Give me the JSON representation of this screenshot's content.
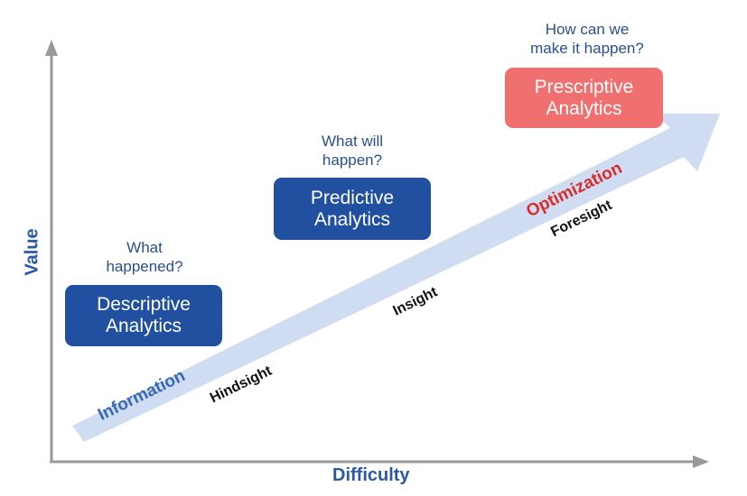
{
  "axes": {
    "x_label": "Difficulty",
    "y_label": "Value",
    "axis_color": "#9a9a9a",
    "label_color": "#2a58a6"
  },
  "arrow": {
    "color": "#cfdcf1",
    "start_label": "Information",
    "end_label": "Optimization",
    "start_label_color": "#3a68b4",
    "end_label_color": "#d92b2b"
  },
  "stage_labels": [
    "Hindsight",
    "Insight",
    "Foresight"
  ],
  "stages": [
    {
      "question": "What\nhappened?",
      "title": "Descriptive\nAnalytics",
      "color": "#2150a0"
    },
    {
      "question": "What will\nhappen?",
      "title": "Predictive\nAnalytics",
      "color": "#2150a0"
    },
    {
      "question": "How can we\nmake it happen?",
      "title": "Prescriptive\nAnalytics",
      "color": "#f07070"
    }
  ]
}
